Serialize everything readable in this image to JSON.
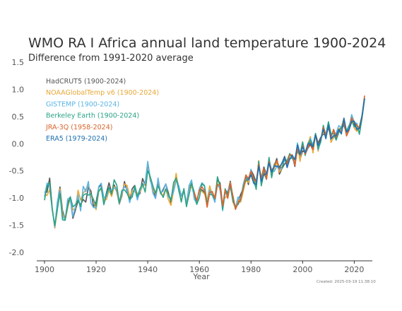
{
  "chart_data": {
    "type": "line",
    "title": "WMO RA I Africa annual land temperature 1900-2024",
    "subtitle": "Difference from 1991-2020 average",
    "xlabel": "Year",
    "ylabel": "",
    "xlim": [
      1897,
      2027
    ],
    "ylim": [
      -2.0,
      1.5
    ],
    "x_ticks": [
      1900,
      1920,
      1940,
      1960,
      1980,
      2000,
      2020
    ],
    "y_ticks": [
      "1.5",
      "1.0",
      "0.5",
      "0.0",
      "-0.5",
      "-1.0",
      "-1.5",
      "-2.0"
    ],
    "grid": false,
    "legend_position": "top-left",
    "created_note": "Created: 2025-03-19 11:38:10",
    "base_series": {
      "x_start": 1900,
      "values": [
        -0.9,
        -0.85,
        -0.75,
        -1.25,
        -1.45,
        -1.2,
        -0.85,
        -1.3,
        -1.4,
        -1.15,
        -1.05,
        -1.3,
        -1.2,
        -1.0,
        -1.1,
        -0.9,
        -0.95,
        -0.8,
        -1.0,
        -1.1,
        -1.15,
        -0.85,
        -0.75,
        -1.05,
        -0.95,
        -0.8,
        -0.9,
        -0.75,
        -0.85,
        -1.1,
        -0.9,
        -0.75,
        -0.85,
        -1.0,
        -0.9,
        -0.8,
        -0.95,
        -0.85,
        -0.7,
        -0.8,
        -0.4,
        -0.65,
        -0.85,
        -0.95,
        -0.7,
        -0.85,
        -0.9,
        -0.75,
        -0.95,
        -1.05,
        -0.8,
        -0.6,
        -0.85,
        -1.0,
        -0.9,
        -1.15,
        -0.85,
        -0.75,
        -0.95,
        -1.05,
        -0.9,
        -0.8,
        -0.85,
        -1.1,
        -0.85,
        -0.95,
        -1.0,
        -0.7,
        -0.8,
        -1.15,
        -0.9,
        -0.95,
        -0.75,
        -1.0,
        -1.2,
        -1.05,
        -1.0,
        -0.8,
        -0.6,
        -0.7,
        -0.55,
        -0.65,
        -0.75,
        -0.4,
        -0.7,
        -0.5,
        -0.6,
        -0.35,
        -0.55,
        -0.45,
        -0.35,
        -0.5,
        -0.4,
        -0.3,
        -0.4,
        -0.25,
        -0.2,
        -0.35,
        -0.05,
        -0.25,
        -0.05,
        -0.15,
        -0.05,
        0.05,
        -0.1,
        0.15,
        -0.05,
        0.1,
        0.25,
        0.15,
        0.35,
        0.1,
        0.2,
        0.15,
        0.3,
        0.25,
        0.4,
        0.2,
        0.3,
        0.45,
        0.35,
        0.3,
        0.25,
        0.5,
        0.85
      ]
    },
    "series": [
      {
        "name": "HadCRUT5 (1900-2024)",
        "color": "#555555",
        "start": 1900,
        "end": 2024,
        "delta_scale": 0.9,
        "seed": 1
      },
      {
        "name": "NOAAGlobalTemp v6 (1900-2024)",
        "color": "#e8a838",
        "start": 1900,
        "end": 2024,
        "delta_scale": 1.0,
        "seed": 2
      },
      {
        "name": "GISTEMP (1900-2024)",
        "color": "#5ab4e6",
        "start": 1900,
        "end": 2024,
        "delta_scale": 1.0,
        "seed": 3
      },
      {
        "name": "Berkeley Earth (1900-2024)",
        "color": "#2aa385",
        "start": 1900,
        "end": 2024,
        "delta_scale": 1.1,
        "seed": 4
      },
      {
        "name": "JRA-3Q (1958-2024)",
        "color": "#d9642b",
        "start": 1958,
        "end": 2024,
        "delta_scale": 0.8,
        "seed": 5
      },
      {
        "name": "ERA5 (1979-2024)",
        "color": "#1f6fb0",
        "start": 1979,
        "end": 2024,
        "delta_scale": 0.8,
        "seed": 6
      }
    ]
  }
}
